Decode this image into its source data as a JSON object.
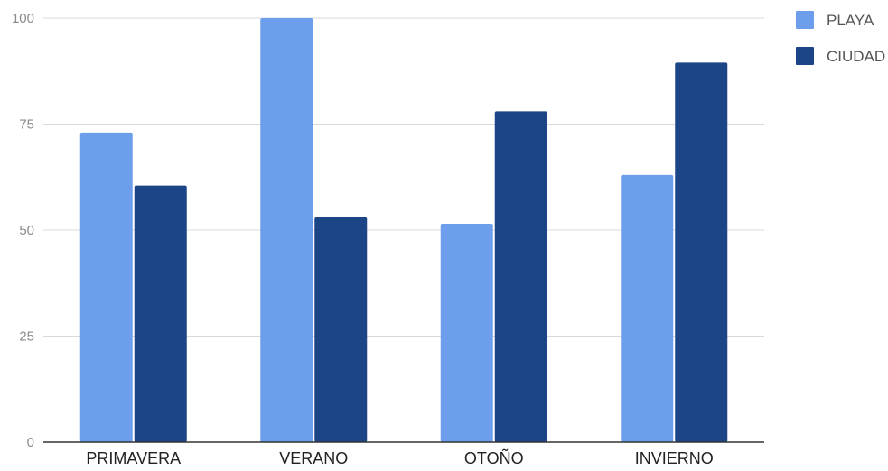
{
  "chart_data": {
    "type": "bar",
    "title": "",
    "xlabel": "",
    "ylabel": "",
    "categories": [
      "PRIMAVERA",
      "VERANO",
      "OTOÑO",
      "INVIERNO"
    ],
    "series": [
      {
        "name": "PLAYA",
        "color": "#6d9eeb",
        "values": [
          73,
          100,
          51.5,
          63
        ]
      },
      {
        "name": "CIUDAD",
        "color": "#1c4587",
        "values": [
          60.5,
          53,
          78,
          89.5
        ]
      }
    ],
    "ylim": [
      0,
      100
    ],
    "yticks": [
      0,
      25,
      50,
      75,
      100
    ],
    "grid": true,
    "legend_position": "top-right"
  }
}
